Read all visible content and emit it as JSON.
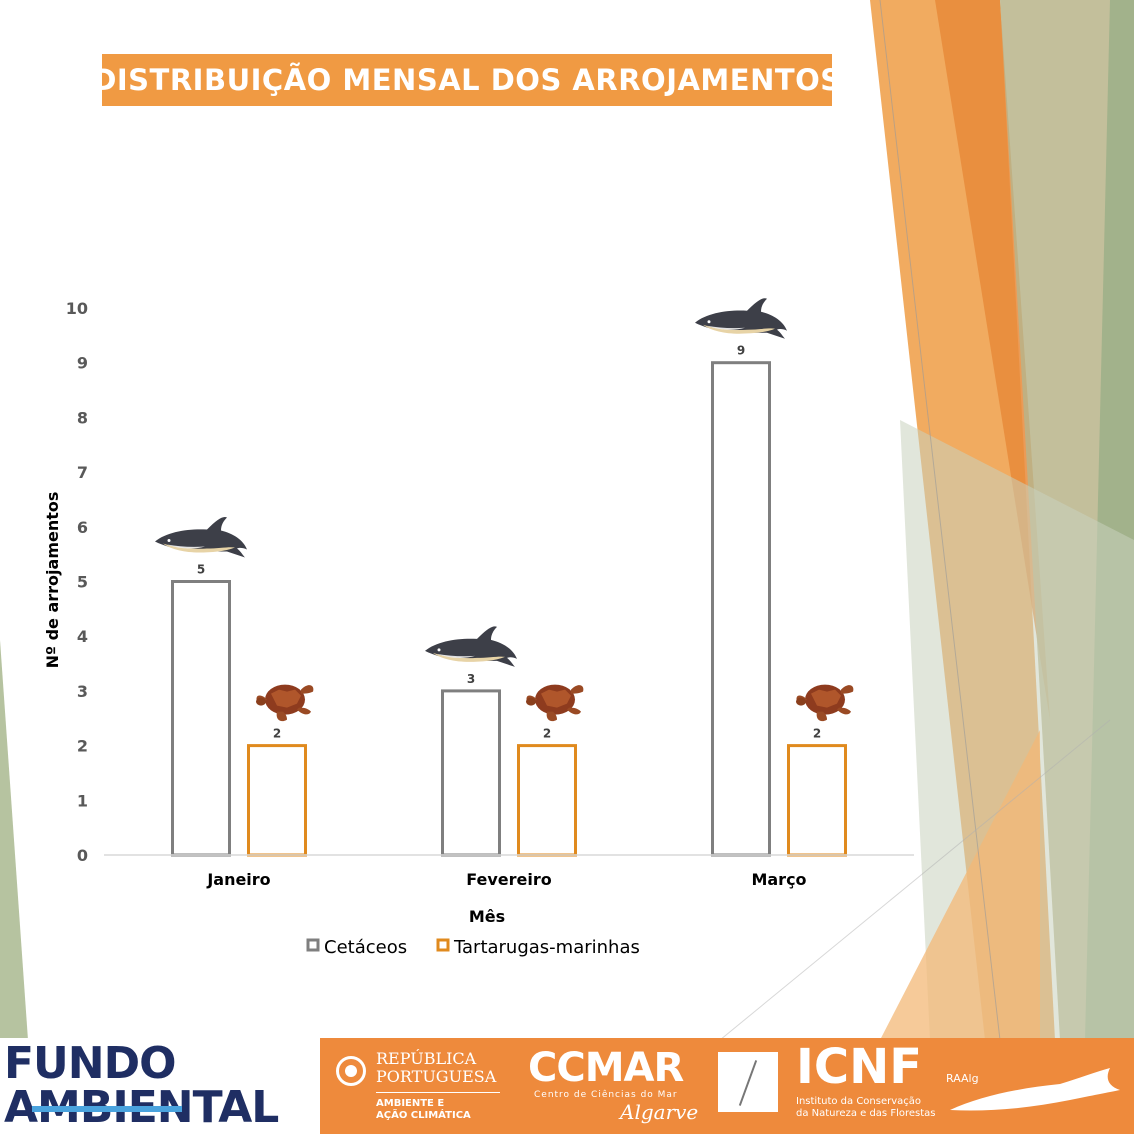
{
  "title": "DISTRIBUIÇÃO MENSAL DOS ARROJAMENTOS",
  "colors": {
    "accent": "#f09a43",
    "cetaceos": "#7f7f7f",
    "tartarugas": "#e08a1e",
    "axis_text": "#595959"
  },
  "chart_data": {
    "type": "bar",
    "categories": [
      "Janeiro",
      "Fevereiro",
      "Março"
    ],
    "series": [
      {
        "name": "Cetáceos",
        "values": [
          5,
          3,
          9
        ],
        "icon": "dolphin-icon"
      },
      {
        "name": "Tartarugas-marinhas",
        "values": [
          2,
          2,
          2
        ],
        "icon": "turtle-icon"
      }
    ],
    "xlabel": "Mês",
    "ylabel": "Nº de arrojamentos",
    "ylim": [
      0,
      10
    ],
    "yticks": [
      0,
      1,
      2,
      3,
      4,
      5,
      6,
      7,
      8,
      9,
      10
    ],
    "grid": false,
    "legend": "bottom",
    "data_labels": true
  },
  "footer": {
    "fundo_line1": "FUNDO",
    "fundo_line2": "AMBIENTAL",
    "republica_line1": "REPÚBLICA",
    "republica_line2": "PORTUGUESA",
    "ambiente_line1": "AMBIENTE E",
    "ambiente_line2": "AÇÃO CLIMÁTICA",
    "ccmar": "CCMAR",
    "ccmar_sub": "Centro de Ciências do Mar",
    "ccmar_region": "Algarve",
    "icnf": "ICNF",
    "icnf_sub_line1": "Instituto da Conservação",
    "icnf_sub_line2": "da Natureza e das Florestas",
    "raalg": "RAAlg"
  }
}
